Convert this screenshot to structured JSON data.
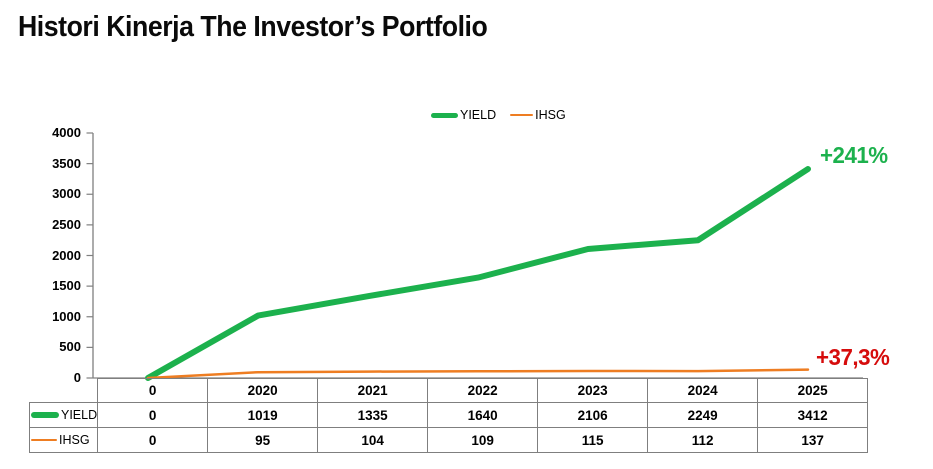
{
  "title": "Histori Kinerja The Investor’s Portfolio",
  "colors": {
    "yield_green": "#1cb14d",
    "ihsg_orange": "#ee7d22",
    "annotation_red": "#d60c0c",
    "axis_gray": "#808080",
    "table_border_gray": "#7f7f7f",
    "title_black": "#0a0a0a"
  },
  "legend": {
    "items": [
      {
        "label": "YIELD",
        "swatch": "thick-green-line"
      },
      {
        "label": "IHSG",
        "swatch": "thin-orange-line"
      }
    ]
  },
  "chart_data": {
    "type": "line",
    "title": "Histori Kinerja The Investor’s Portfolio",
    "categories": [
      "0",
      "2020",
      "2021",
      "2022",
      "2023",
      "2024",
      "2025"
    ],
    "series": [
      {
        "name": "YIELD",
        "color": "#1cb14d",
        "stroke_width": 6,
        "values": [
          0,
          1019,
          1335,
          1640,
          2106,
          2249,
          3412
        ]
      },
      {
        "name": "IHSG",
        "color": "#ee7d22",
        "stroke_width": 2.5,
        "values": [
          0,
          95,
          104,
          109,
          115,
          112,
          137
        ]
      }
    ],
    "xlabel": "",
    "ylabel": "",
    "ylim": [
      0,
      4000
    ],
    "yticks": [
      0,
      500,
      1000,
      1500,
      2000,
      2500,
      3000,
      3500,
      4000
    ],
    "grid": false,
    "legend_position": "top-center",
    "annotations": [
      {
        "series": "YIELD",
        "text": "+241%",
        "color": "#1cb14d"
      },
      {
        "series": "IHSG",
        "text": "+37,3%",
        "color": "#d60c0c"
      }
    ],
    "data_table_shown": true
  }
}
